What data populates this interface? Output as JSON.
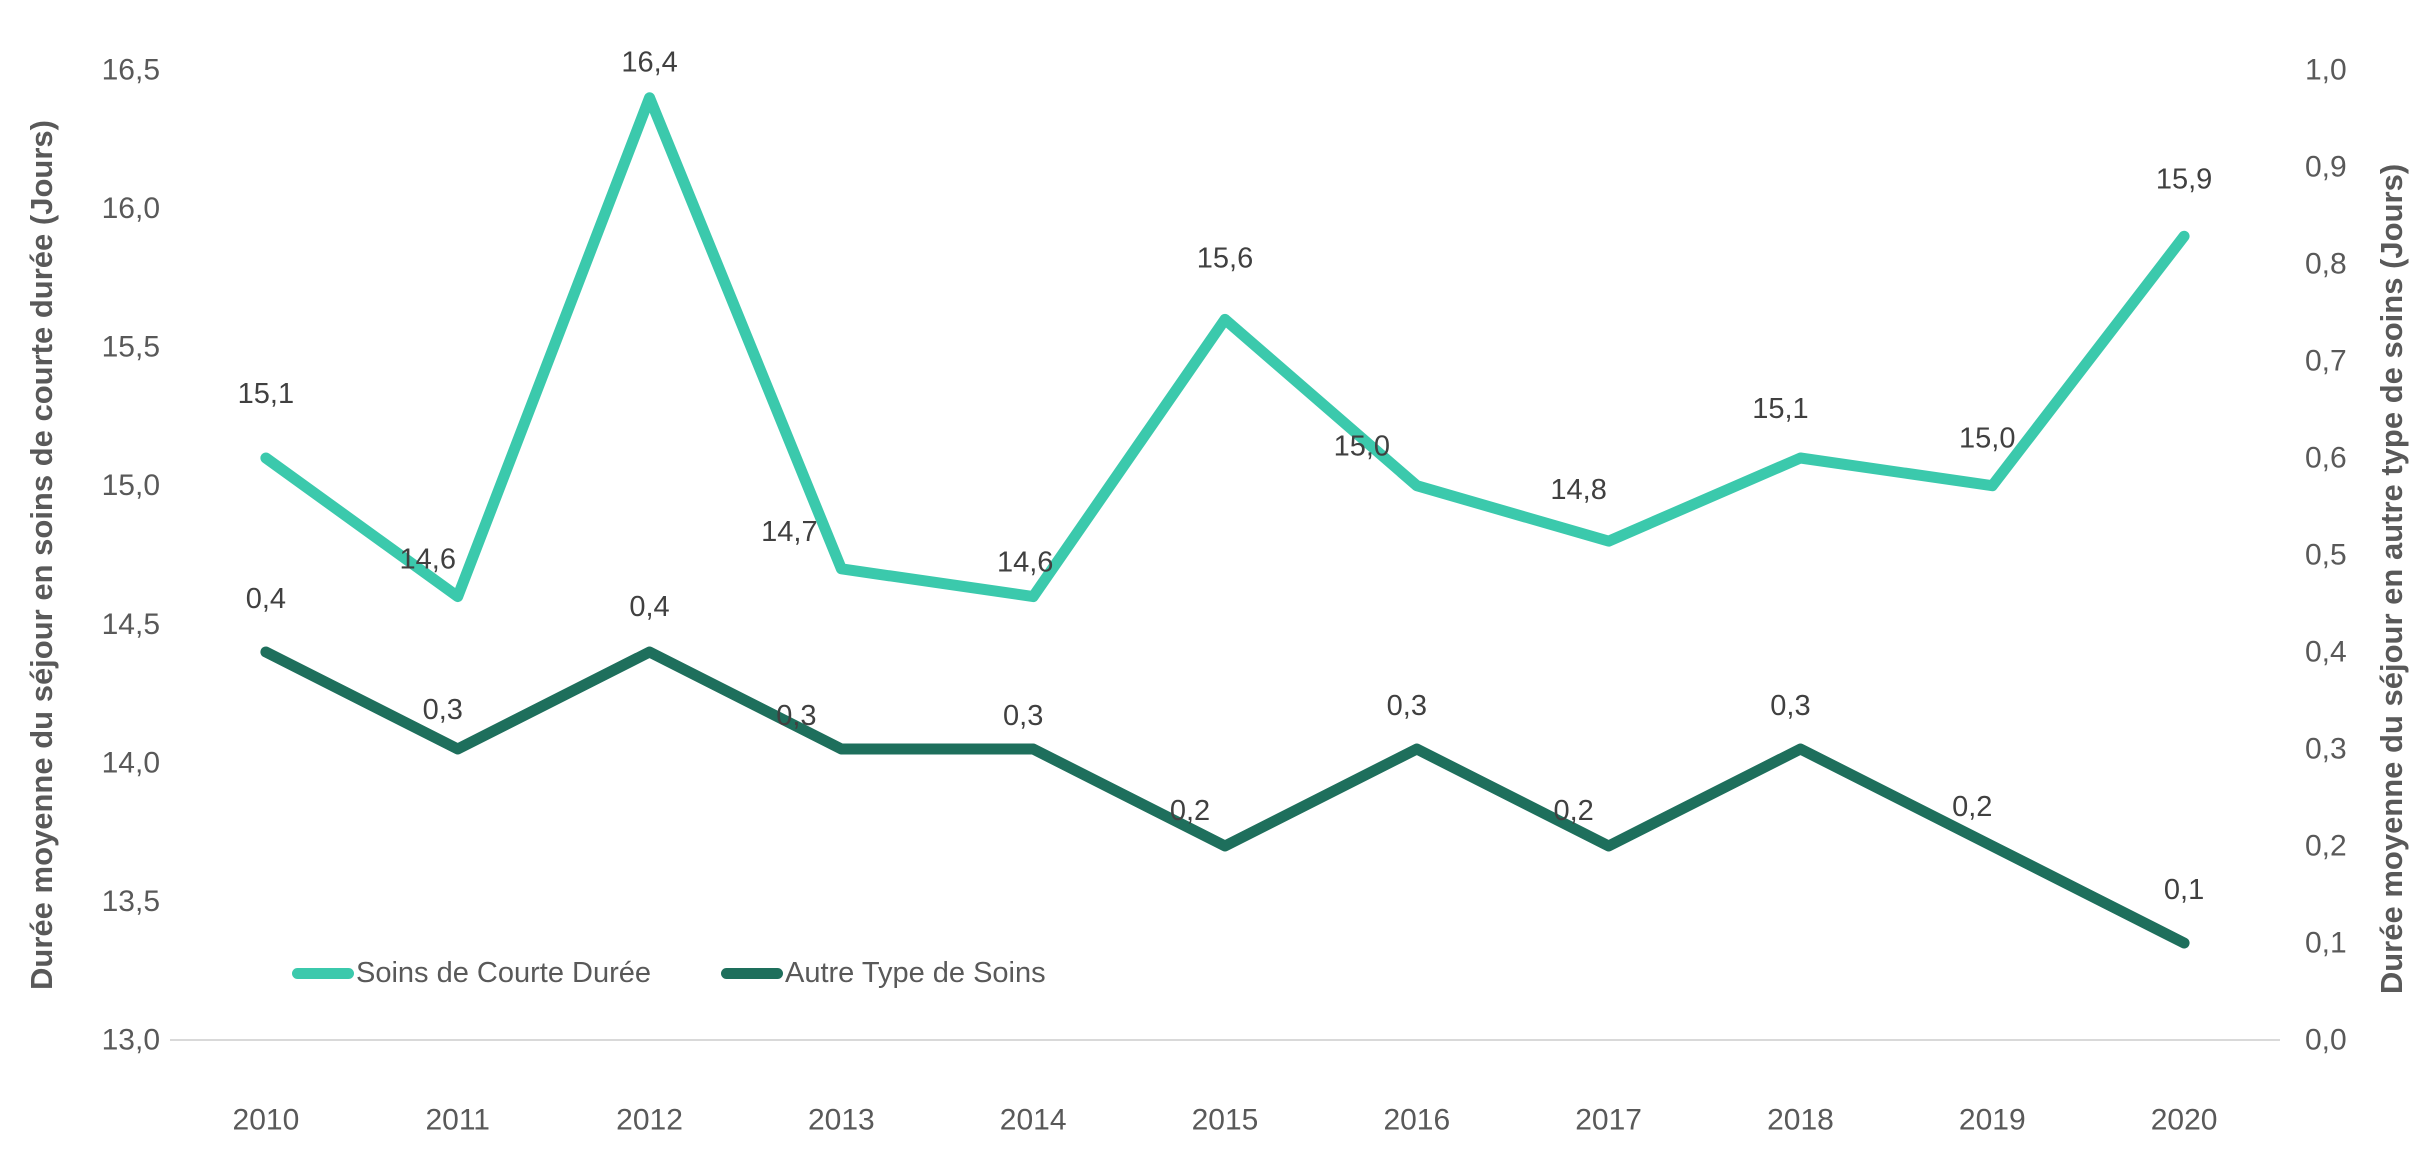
{
  "chart_data": {
    "type": "line",
    "title": "",
    "grid": false,
    "categories": [
      "2010",
      "2011",
      "2012",
      "2013",
      "2014",
      "2015",
      "2016",
      "2017",
      "2018",
      "2019",
      "2020"
    ],
    "series": [
      {
        "name": "Soins de Courte Durée",
        "axis": "left",
        "color": "#3BC9AC",
        "values": [
          15.1,
          14.6,
          16.4,
          14.7,
          14.6,
          15.6,
          15.0,
          14.8,
          15.1,
          15.0,
          15.9
        ],
        "labels": [
          "15,1",
          "14,6",
          "16,4",
          "14,7",
          "14,6",
          "15,6",
          "15,0",
          "14,8",
          "15,1",
          "15,0",
          "15,9"
        ]
      },
      {
        "name": "Autre Type de Soins",
        "axis": "right",
        "color": "#1E6F5C",
        "values": [
          0.4,
          0.3,
          0.4,
          0.3,
          0.3,
          0.2,
          0.3,
          0.2,
          0.3,
          0.2,
          0.1
        ],
        "labels": [
          "0,4",
          "0,3",
          "0,4",
          "0,3",
          "0,3",
          "0,2",
          "0,3",
          "0,2",
          "0,3",
          "0,2",
          "0,1"
        ]
      }
    ],
    "axes": {
      "left": {
        "title": "Durée moyenne du séjour en soins de courte durée (Jours)",
        "min": 13.0,
        "max": 16.5,
        "tick_labels": [
          "13,0",
          "13,5",
          "14,0",
          "14,5",
          "15,0",
          "15,5",
          "16,0",
          "16,5"
        ]
      },
      "right": {
        "title": "Durée moyenne du séjour en autre type de soins (Jours)",
        "min": 0.0,
        "max": 1.0,
        "tick_labels": [
          "0,0",
          "0,1",
          "0,2",
          "0,3",
          "0,4",
          "0,5",
          "0,6",
          "0,7",
          "0,8",
          "0,9",
          "1,0"
        ]
      },
      "x": {
        "tick_labels": [
          "2010",
          "2011",
          "2012",
          "2013",
          "2014",
          "2015",
          "2016",
          "2017",
          "2018",
          "2019",
          "2020"
        ]
      }
    },
    "legend": {
      "position": "bottom-left-inside",
      "items": [
        {
          "label": "Soins de Courte Durée",
          "color": "#3BC9AC"
        },
        {
          "label": "Autre Type de Soins",
          "color": "#1E6F5C"
        }
      ]
    }
  },
  "colors": {
    "background": "#FFFFFF",
    "axis_line": "#D9D9D9",
    "tick_text": "#595959",
    "x_tick_text": "#595959",
    "data_label_text": "#404040",
    "axis_title_text": "#595959"
  }
}
